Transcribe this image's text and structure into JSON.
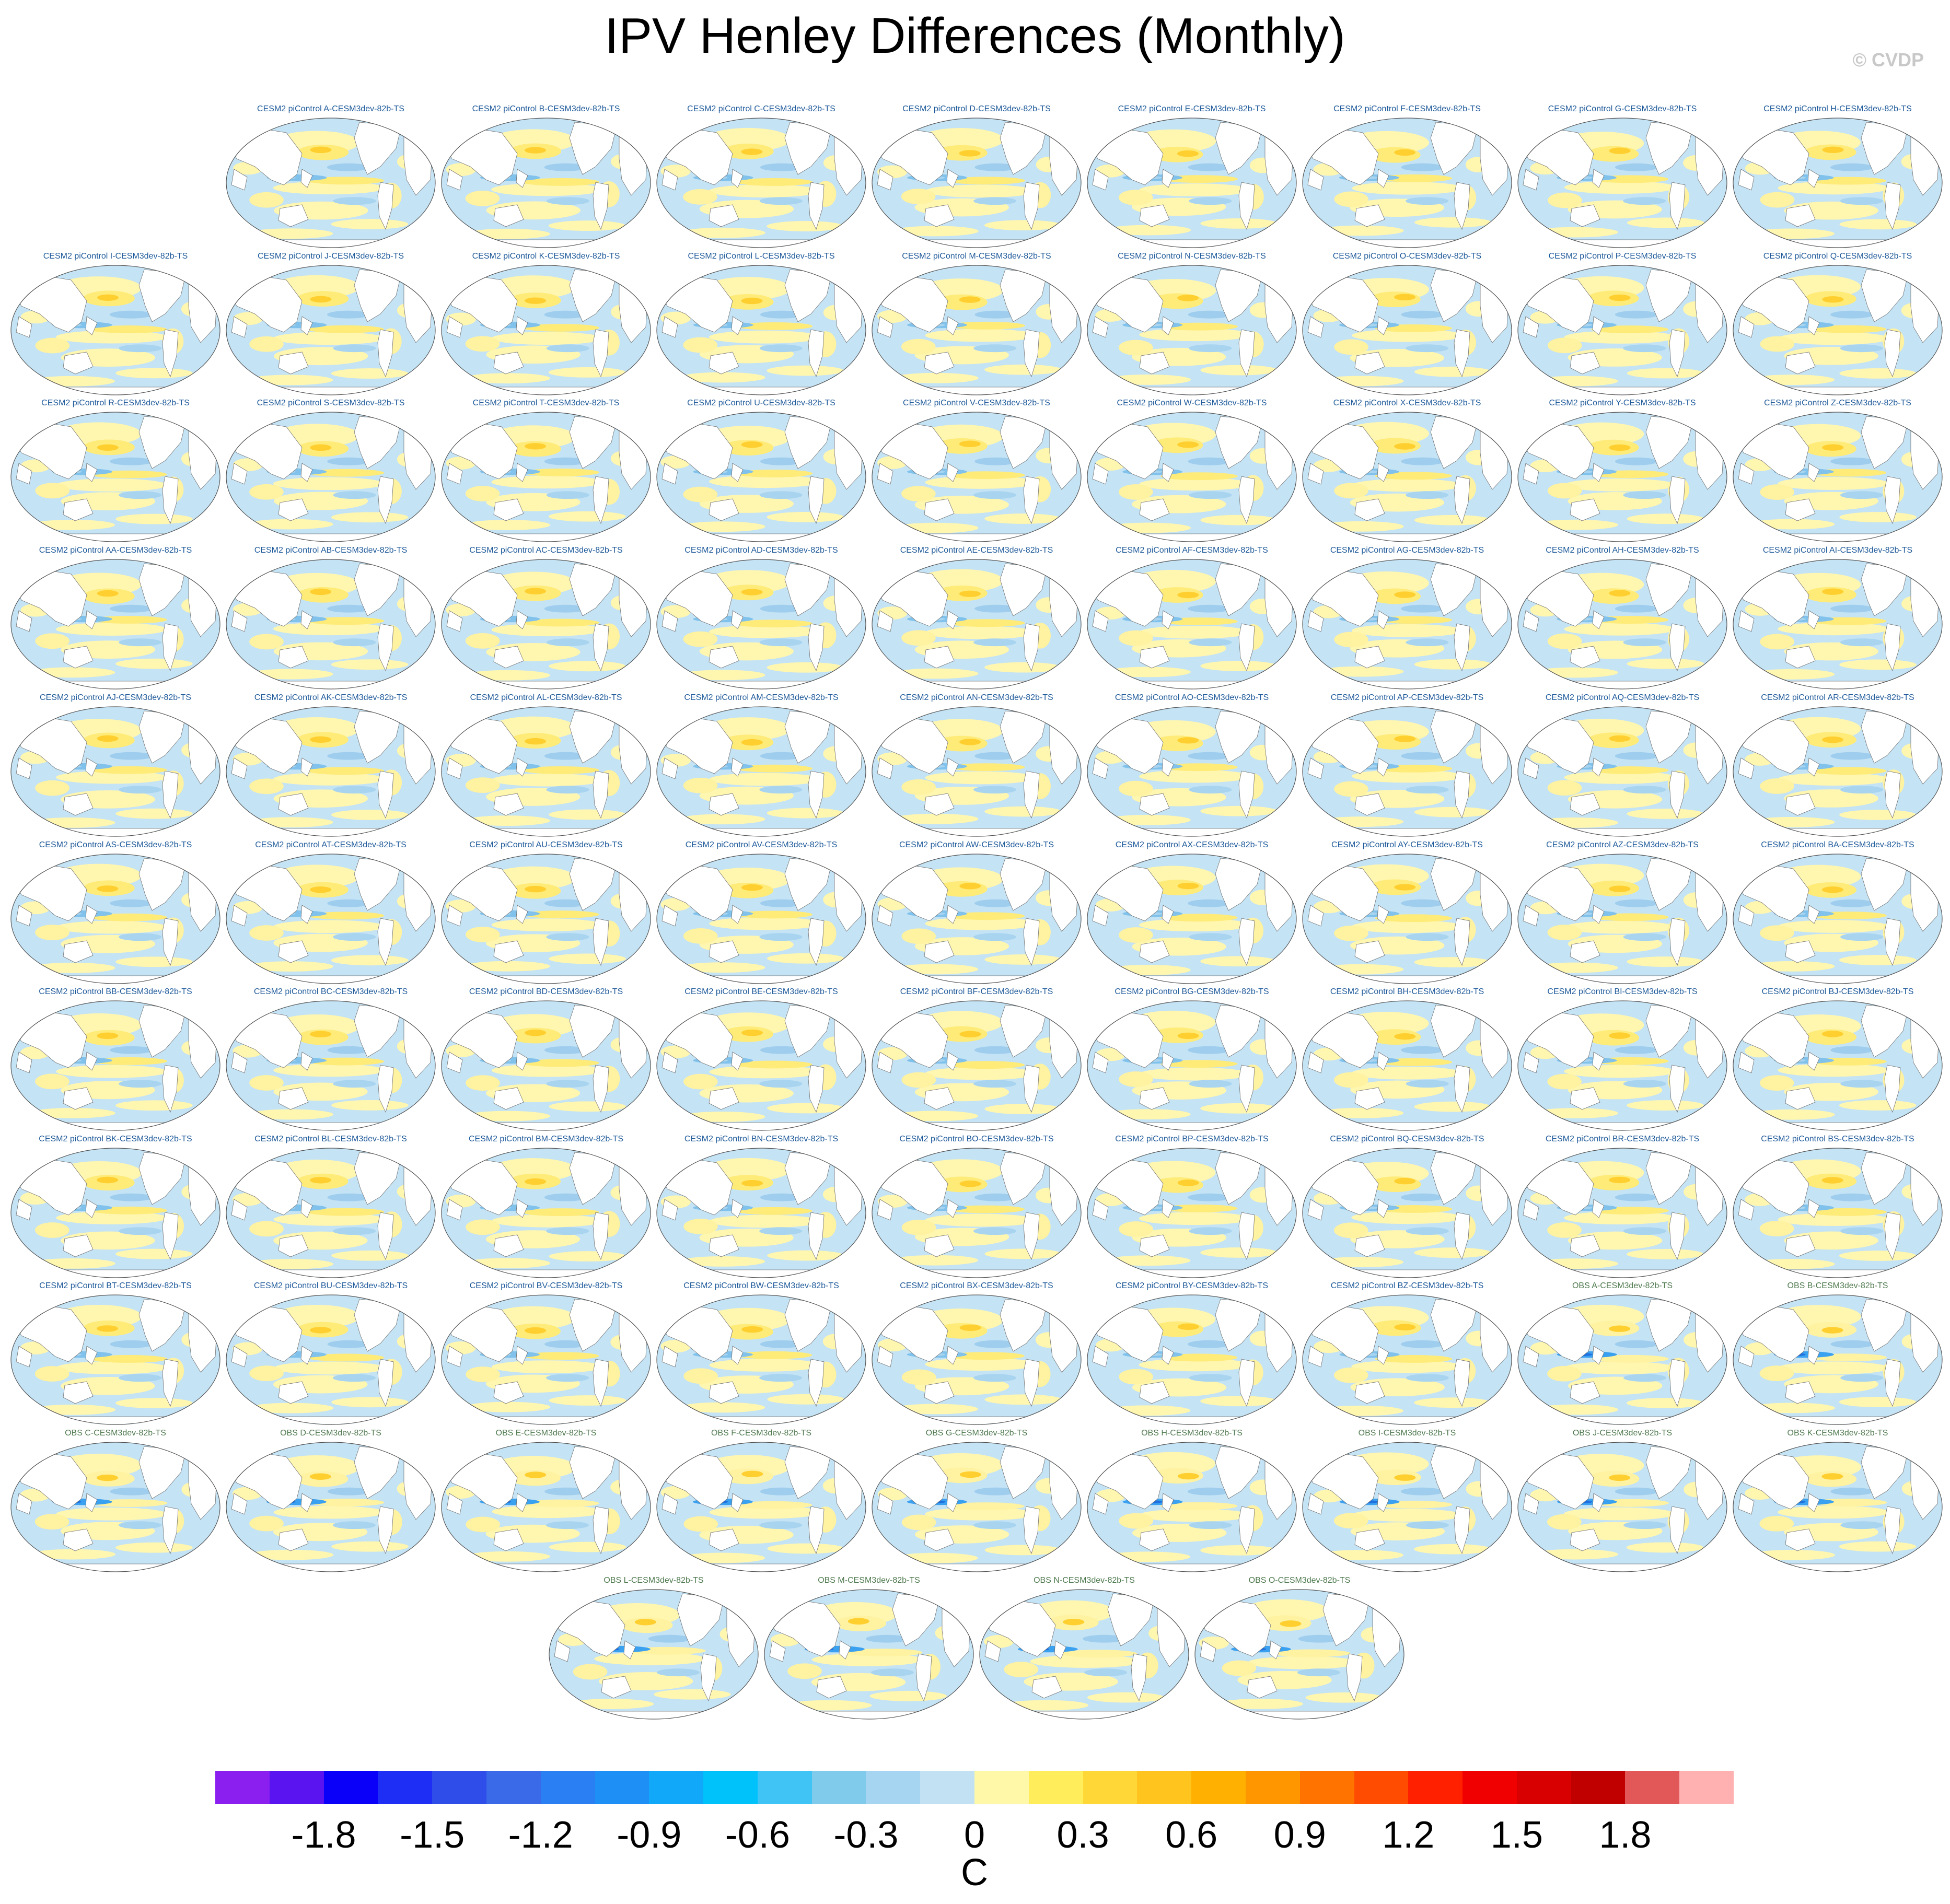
{
  "title": "IPV Henley Differences (Monthly)",
  "copyright": "© CVDP",
  "chart_data": {
    "type": "heatmap",
    "description_type": "map-panel-grid",
    "rows": [
      [
        "CESM2 piControl A-CESM3dev-82b-TS",
        "CESM2 piControl B-CESM3dev-82b-TS",
        "CESM2 piControl C-CESM3dev-82b-TS",
        "CESM2 piControl D-CESM3dev-82b-TS",
        "CESM2 piControl E-CESM3dev-82b-TS",
        "CESM2 piControl F-CESM3dev-82b-TS",
        "CESM2 piControl G-CESM3dev-82b-TS",
        "CESM2 piControl H-CESM3dev-82b-TS"
      ],
      [
        "CESM2 piControl I-CESM3dev-82b-TS",
        "CESM2 piControl J-CESM3dev-82b-TS",
        "CESM2 piControl K-CESM3dev-82b-TS",
        "CESM2 piControl L-CESM3dev-82b-TS",
        "CESM2 piControl M-CESM3dev-82b-TS",
        "CESM2 piControl N-CESM3dev-82b-TS",
        "CESM2 piControl O-CESM3dev-82b-TS",
        "CESM2 piControl P-CESM3dev-82b-TS",
        "CESM2 piControl Q-CESM3dev-82b-TS"
      ],
      [
        "CESM2 piControl R-CESM3dev-82b-TS",
        "CESM2 piControl S-CESM3dev-82b-TS",
        "CESM2 piControl T-CESM3dev-82b-TS",
        "CESM2 piControl U-CESM3dev-82b-TS",
        "CESM2 piControl V-CESM3dev-82b-TS",
        "CESM2 piControl W-CESM3dev-82b-TS",
        "CESM2 piControl X-CESM3dev-82b-TS",
        "CESM2 piControl Y-CESM3dev-82b-TS",
        "CESM2 piControl Z-CESM3dev-82b-TS"
      ],
      [
        "CESM2 piControl AA-CESM3dev-82b-TS",
        "CESM2 piControl AB-CESM3dev-82b-TS",
        "CESM2 piControl AC-CESM3dev-82b-TS",
        "CESM2 piControl AD-CESM3dev-82b-TS",
        "CESM2 piControl AE-CESM3dev-82b-TS",
        "CESM2 piControl AF-CESM3dev-82b-TS",
        "CESM2 piControl AG-CESM3dev-82b-TS",
        "CESM2 piControl AH-CESM3dev-82b-TS",
        "CESM2 piControl AI-CESM3dev-82b-TS"
      ],
      [
        "CESM2 piControl AJ-CESM3dev-82b-TS",
        "CESM2 piControl AK-CESM3dev-82b-TS",
        "CESM2 piControl AL-CESM3dev-82b-TS",
        "CESM2 piControl AM-CESM3dev-82b-TS",
        "CESM2 piControl AN-CESM3dev-82b-TS",
        "CESM2 piControl AO-CESM3dev-82b-TS",
        "CESM2 piControl AP-CESM3dev-82b-TS",
        "CESM2 piControl AQ-CESM3dev-82b-TS",
        "CESM2 piControl AR-CESM3dev-82b-TS"
      ],
      [
        "CESM2 piControl AS-CESM3dev-82b-TS",
        "CESM2 piControl AT-CESM3dev-82b-TS",
        "CESM2 piControl AU-CESM3dev-82b-TS",
        "CESM2 piControl AV-CESM3dev-82b-TS",
        "CESM2 piControl AW-CESM3dev-82b-TS",
        "CESM2 piControl AX-CESM3dev-82b-TS",
        "CESM2 piControl AY-CESM3dev-82b-TS",
        "CESM2 piControl AZ-CESM3dev-82b-TS",
        "CESM2 piControl BA-CESM3dev-82b-TS"
      ],
      [
        "CESM2 piControl BB-CESM3dev-82b-TS",
        "CESM2 piControl BC-CESM3dev-82b-TS",
        "CESM2 piControl BD-CESM3dev-82b-TS",
        "CESM2 piControl BE-CESM3dev-82b-TS",
        "CESM2 piControl BF-CESM3dev-82b-TS",
        "CESM2 piControl BG-CESM3dev-82b-TS",
        "CESM2 piControl BH-CESM3dev-82b-TS",
        "CESM2 piControl BI-CESM3dev-82b-TS",
        "CESM2 piControl BJ-CESM3dev-82b-TS"
      ],
      [
        "CESM2 piControl BK-CESM3dev-82b-TS",
        "CESM2 piControl BL-CESM3dev-82b-TS",
        "CESM2 piControl BM-CESM3dev-82b-TS",
        "CESM2 piControl BN-CESM3dev-82b-TS",
        "CESM2 piControl BO-CESM3dev-82b-TS",
        "CESM2 piControl BP-CESM3dev-82b-TS",
        "CESM2 piControl BQ-CESM3dev-82b-TS",
        "CESM2 piControl BR-CESM3dev-82b-TS",
        "CESM2 piControl BS-CESM3dev-82b-TS"
      ],
      [
        "CESM2 piControl BT-CESM3dev-82b-TS",
        "CESM2 piControl BU-CESM3dev-82b-TS",
        "CESM2 piControl BV-CESM3dev-82b-TS",
        "CESM2 piControl BW-CESM3dev-82b-TS",
        "CESM2 piControl BX-CESM3dev-82b-TS",
        "CESM2 piControl BY-CESM3dev-82b-TS",
        "CESM2 piControl BZ-CESM3dev-82b-TS",
        "OBS A-CESM3dev-82b-TS",
        "OBS B-CESM3dev-82b-TS"
      ],
      [
        "OBS C-CESM3dev-82b-TS",
        "OBS D-CESM3dev-82b-TS",
        "OBS E-CESM3dev-82b-TS",
        "OBS F-CESM3dev-82b-TS",
        "OBS G-CESM3dev-82b-TS",
        "OBS H-CESM3dev-82b-TS",
        "OBS I-CESM3dev-82b-TS",
        "OBS J-CESM3dev-82b-TS",
        "OBS K-CESM3dev-82b-TS"
      ],
      [
        "OBS L-CESM3dev-82b-TS",
        "OBS M-CESM3dev-82b-TS",
        "OBS N-CESM3dev-82b-TS",
        "OBS O-CESM3dev-82b-TS"
      ]
    ],
    "colorbar": {
      "unit": "C",
      "colors": [
        "#8a1ff0",
        "#5a14f0",
        "#0a00fa",
        "#1e2ef5",
        "#2f4de8",
        "#3a6ae8",
        "#2a80f2",
        "#1e8ff5",
        "#12a8fa",
        "#00c2fb",
        "#40c4f5",
        "#80cbeb",
        "#a6d5f2",
        "#c2e2f4",
        "#fff8a8",
        "#ffed5c",
        "#ffd838",
        "#ffc41e",
        "#ffb000",
        "#ff9600",
        "#ff7400",
        "#ff4c00",
        "#ff2000",
        "#f00000",
        "#d80000",
        "#c00000",
        "#e25858",
        "#ffb0b0"
      ],
      "tick_labels": [
        "-1.8",
        "-1.5",
        "-1.2",
        "-0.9",
        "-0.6",
        "-0.3",
        "0",
        "0.3",
        "0.6",
        "0.9",
        "1.2",
        "1.5",
        "1.8"
      ],
      "range": [
        -2.1,
        2.1
      ]
    }
  }
}
